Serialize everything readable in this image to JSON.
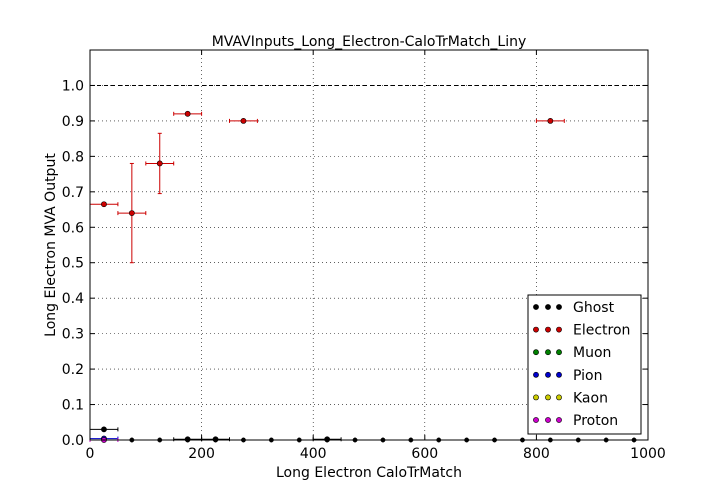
{
  "chart_data": {
    "type": "scatter",
    "title": "MVAVInputs_Long_Electron-CaloTrMatch_Liny",
    "xlabel": "Long Electron CaloTrMatch",
    "ylabel": "Long Electron MVA Output",
    "xlim": [
      0,
      1000
    ],
    "ylim": [
      0,
      1.1
    ],
    "xticks": [
      "0",
      "200",
      "400",
      "600",
      "800",
      "1000"
    ],
    "yticks": [
      "0.0",
      "0.1",
      "0.2",
      "0.3",
      "0.4",
      "0.5",
      "0.6",
      "0.7",
      "0.8",
      "0.9",
      "1.0"
    ],
    "grid": true,
    "reference_line_y": 1.0,
    "legend_position": "lower-right",
    "bin_half_width": 25,
    "series": [
      {
        "name": "Ghost",
        "color": "#000000",
        "points": [
          {
            "x": 25,
            "y": 0.03,
            "yerr": 0.0
          },
          {
            "x": 175,
            "y": 0.002,
            "yerr": 0.0
          },
          {
            "x": 225,
            "y": 0.002,
            "yerr": 0.0
          },
          {
            "x": 425,
            "y": 0.002,
            "yerr": 0.0
          }
        ]
      },
      {
        "name": "Electron",
        "color": "#cc0000",
        "points": [
          {
            "x": 25,
            "y": 0.665,
            "yerr": 0.0
          },
          {
            "x": 75,
            "y": 0.64,
            "yerr": 0.14
          },
          {
            "x": 125,
            "y": 0.78,
            "yerr": 0.085
          },
          {
            "x": 175,
            "y": 0.92,
            "yerr": 0.0
          },
          {
            "x": 275,
            "y": 0.9,
            "yerr": 0.0
          },
          {
            "x": 825,
            "y": 0.9,
            "yerr": 0.0
          }
        ]
      },
      {
        "name": "Muon",
        "color": "#008000",
        "points": []
      },
      {
        "name": "Pion",
        "color": "#0000cc",
        "points": [
          {
            "x": 25,
            "y": 0.004,
            "yerr": 0.0
          }
        ]
      },
      {
        "name": "Kaon",
        "color": "#cccc00",
        "points": []
      },
      {
        "name": "Proton",
        "color": "#cc00cc",
        "points": [
          {
            "x": 25,
            "y": 0.0,
            "yerr": 0.0
          }
        ]
      }
    ],
    "zero_points_x": [
      75,
      125,
      175,
      225,
      275,
      325,
      375,
      425,
      475,
      525,
      575,
      625,
      675,
      725,
      775,
      825,
      875,
      925,
      975
    ]
  }
}
